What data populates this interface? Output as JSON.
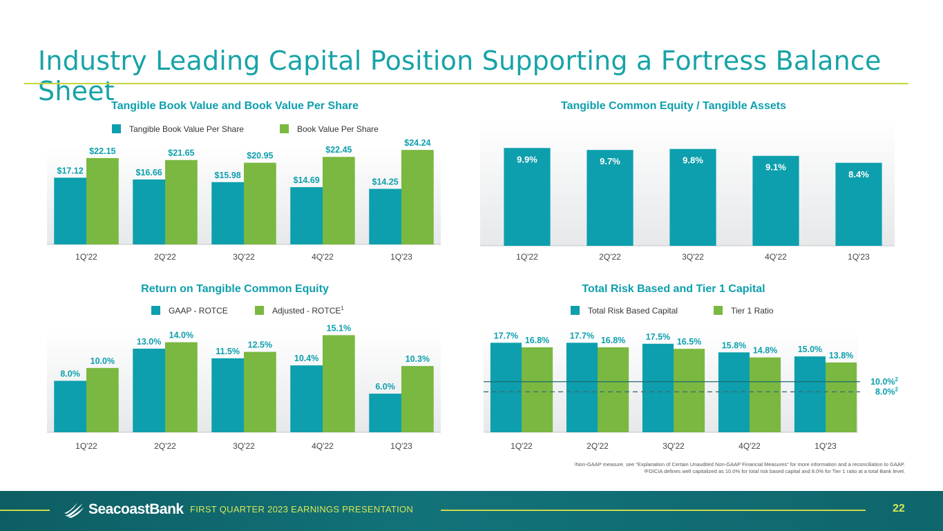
{
  "page": {
    "title": "Industry Leading Capital Position Supporting a Fortress Balance Sheet",
    "footer": {
      "brand": "SeacoastBank",
      "label": "FIRST QUARTER 2023 EARNINGS PRESENTATION",
      "page_number": "22"
    },
    "footnotes": {
      "n1_mark": "1",
      "n1": "Non-GAAP measure, see \"Explanation of Certain Unaudited Non-GAAP Financial Measures\" for more information and a reconciliation to GAAP.",
      "n2_mark": "2",
      "n2": "FDICIA defines well capitalized as 10.0% for total risk based capital and 8.0% for Tier 1 ratio at a total Bank level."
    }
  },
  "colors": {
    "teal": "#0d9fad",
    "green": "#7ab841",
    "title": "#17a3a7",
    "accent": "#c5d43a",
    "footer": "#0f666c"
  },
  "chart_data": [
    {
      "id": "tbv",
      "type": "bar",
      "title": "Tangible Book Value and Book Value Per Share",
      "categories": [
        "1Q'22",
        "2Q'22",
        "3Q'22",
        "4Q'22",
        "1Q'23"
      ],
      "series": [
        {
          "name": "Tangible Book Value Per Share",
          "values": [
            17.12,
            16.66,
            15.98,
            14.69,
            14.25
          ],
          "labels": [
            "$17.12",
            "$16.66",
            "$15.98",
            "$14.69",
            "$14.25"
          ]
        },
        {
          "name": "Book Value Per Share",
          "values": [
            22.15,
            21.65,
            20.95,
            22.45,
            24.24
          ],
          "labels": [
            "$22.15",
            "$21.65",
            "$20.95",
            "$22.45",
            "$24.24"
          ]
        }
      ],
      "ylim": [
        0,
        25.5
      ]
    },
    {
      "id": "tce",
      "type": "bar",
      "title": "Tangible Common Equity / Tangible Assets",
      "categories": [
        "1Q'22",
        "2Q'22",
        "3Q'22",
        "4Q'22",
        "1Q'23"
      ],
      "series": [
        {
          "name": "Tangible Common Equity / Tangible Assets",
          "values": [
            9.9,
            9.7,
            9.8,
            9.1,
            8.4
          ],
          "labels": [
            "9.9%",
            "9.7%",
            "9.8%",
            "9.1%",
            "8.4%"
          ]
        }
      ],
      "ylim": [
        0,
        10.2
      ]
    },
    {
      "id": "rotce",
      "type": "bar",
      "title": "Return on Tangible Common Equity",
      "categories": [
        "1Q'22",
        "2Q'22",
        "3Q'22",
        "4Q'22",
        "1Q'23"
      ],
      "series": [
        {
          "name": "GAAP - ROTCE",
          "values": [
            8.0,
            13.0,
            11.5,
            10.4,
            6.0
          ],
          "labels": [
            "8.0%",
            "13.0%",
            "11.5%",
            "10.4%",
            "6.0%"
          ]
        },
        {
          "name": "Adjusted - ROTCE",
          "sup": "1",
          "values": [
            10.0,
            14.0,
            12.5,
            15.1,
            10.3
          ],
          "labels": [
            "10.0%",
            "14.0%",
            "12.5%",
            "15.1%",
            "10.3%"
          ]
        }
      ],
      "ylim": [
        0,
        16.0
      ]
    },
    {
      "id": "capital",
      "type": "bar",
      "title": "Total Risk Based and Tier 1 Capital",
      "categories": [
        "1Q'22",
        "2Q'22",
        "3Q'22",
        "4Q'22",
        "1Q'23"
      ],
      "series": [
        {
          "name": "Total Risk Based Capital",
          "values": [
            17.7,
            17.7,
            17.5,
            15.8,
            15.0
          ],
          "labels": [
            "17.7%",
            "17.7%",
            "17.5%",
            "15.8%",
            "15.0%"
          ]
        },
        {
          "name": "Tier 1 Ratio",
          "values": [
            16.8,
            16.8,
            16.5,
            14.8,
            13.8
          ],
          "labels": [
            "16.8%",
            "16.8%",
            "16.5%",
            "14.8%",
            "13.8%"
          ]
        }
      ],
      "reference_lines": [
        {
          "value": 10.0,
          "label": "10.0%",
          "sup": "2",
          "style": "solid"
        },
        {
          "value": 8.0,
          "label": "8.0%",
          "sup": "2",
          "style": "dashed"
        }
      ],
      "ylim": [
        0,
        19.8
      ]
    }
  ]
}
